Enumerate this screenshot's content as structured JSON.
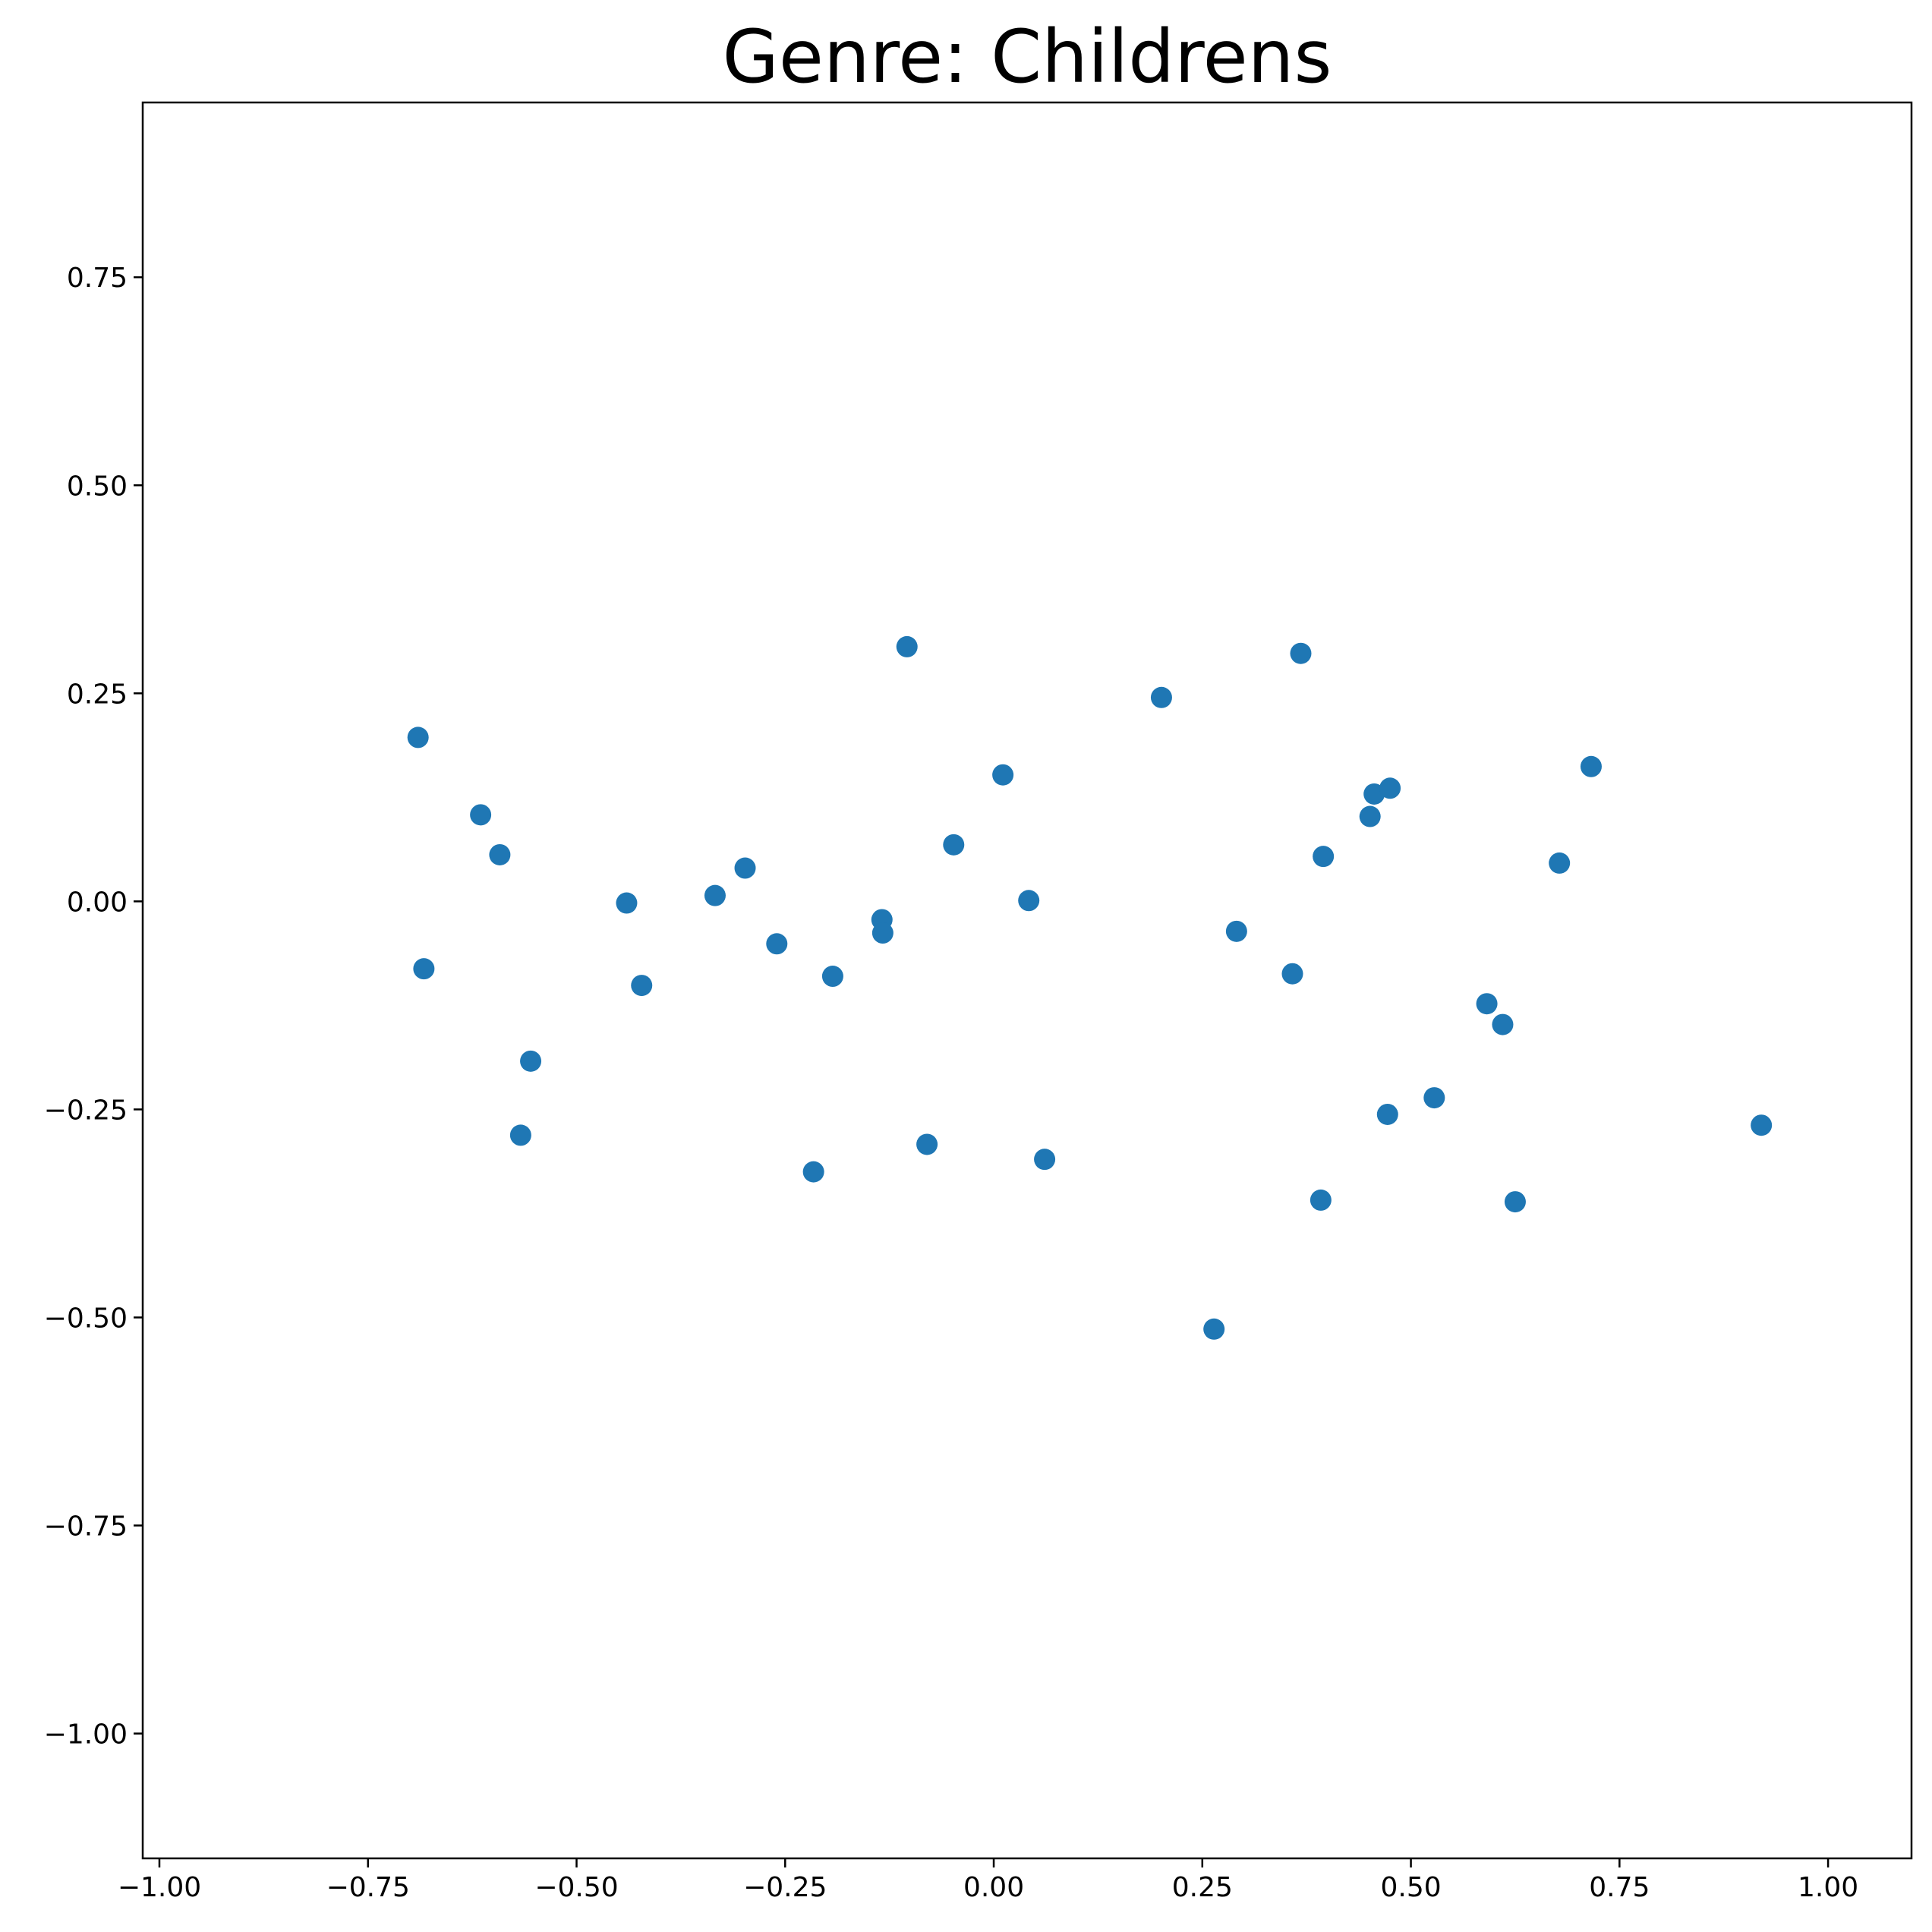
{
  "chart_data": {
    "type": "scatter",
    "title": "Genre: Childrens",
    "xlabel": "",
    "ylabel": "",
    "xlim": [
      -1.02,
      1.1
    ],
    "ylim": [
      -1.15,
      0.96
    ],
    "xticks": [
      -1.0,
      -0.75,
      -0.5,
      -0.25,
      0.0,
      0.25,
      0.5,
      0.75,
      1.0
    ],
    "xtick_labels": [
      "−1.00",
      "−0.75",
      "−0.50",
      "−0.25",
      "0.00",
      "0.25",
      "0.50",
      "0.75",
      "1.00"
    ],
    "yticks": [
      0.75,
      0.5,
      0.25,
      0.0,
      -0.25,
      -0.5,
      -0.75,
      -1.0
    ],
    "ytick_labels": [
      "0.75",
      "0.50",
      "0.25",
      "0.00",
      "−0.25",
      "−0.50",
      "−0.75",
      "−1.00"
    ],
    "grid": false,
    "marker_color": "#1f77b4",
    "points": [
      {
        "x": -0.69,
        "y": 0.197
      },
      {
        "x": -0.683,
        "y": -0.081
      },
      {
        "x": -0.615,
        "y": 0.104
      },
      {
        "x": -0.592,
        "y": 0.056
      },
      {
        "x": -0.555,
        "y": -0.192
      },
      {
        "x": -0.567,
        "y": -0.281
      },
      {
        "x": -0.44,
        "y": -0.002
      },
      {
        "x": -0.422,
        "y": -0.101
      },
      {
        "x": -0.334,
        "y": 0.007
      },
      {
        "x": -0.298,
        "y": 0.04
      },
      {
        "x": -0.26,
        "y": -0.051
      },
      {
        "x": -0.193,
        "y": -0.09
      },
      {
        "x": -0.216,
        "y": -0.325
      },
      {
        "x": -0.134,
        "y": -0.022
      },
      {
        "x": -0.133,
        "y": -0.038
      },
      {
        "x": -0.104,
        "y": 0.306
      },
      {
        "x": -0.08,
        "y": -0.292
      },
      {
        "x": -0.048,
        "y": 0.068
      },
      {
        "x": 0.011,
        "y": 0.152
      },
      {
        "x": 0.042,
        "y": 0.001
      },
      {
        "x": 0.061,
        "y": -0.31
      },
      {
        "x": 0.201,
        "y": 0.245
      },
      {
        "x": 0.264,
        "y": -0.514
      },
      {
        "x": 0.291,
        "y": -0.036
      },
      {
        "x": 0.358,
        "y": -0.087
      },
      {
        "x": 0.368,
        "y": 0.298
      },
      {
        "x": 0.392,
        "y": -0.359
      },
      {
        "x": 0.395,
        "y": 0.054
      },
      {
        "x": 0.451,
        "y": 0.102
      },
      {
        "x": 0.456,
        "y": 0.129
      },
      {
        "x": 0.475,
        "y": 0.136
      },
      {
        "x": 0.472,
        "y": -0.256
      },
      {
        "x": 0.528,
        "y": -0.236
      },
      {
        "x": 0.591,
        "y": -0.123
      },
      {
        "x": 0.61,
        "y": -0.148
      },
      {
        "x": 0.625,
        "y": -0.361
      },
      {
        "x": 0.678,
        "y": 0.046
      },
      {
        "x": 0.716,
        "y": 0.162
      },
      {
        "x": 0.92,
        "y": -0.269
      }
    ]
  }
}
